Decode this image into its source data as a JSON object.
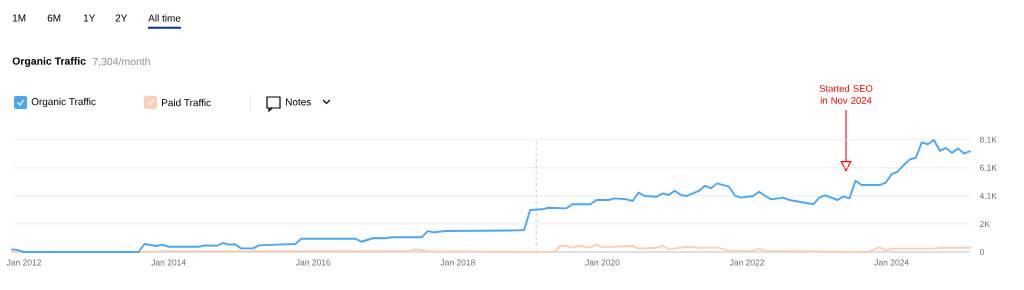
{
  "chart_data": {
    "type": "line",
    "title": "Organic Traffic",
    "subtitle": "7,304/month",
    "xlim": [
      "2011-11",
      "2025-02"
    ],
    "ylim": [
      0,
      8100
    ],
    "xticks": [
      {
        "value": "2012-01",
        "label": "Jan 2012"
      },
      {
        "value": "2014-01",
        "label": "Jan 2014"
      },
      {
        "value": "2016-01",
        "label": "Jan 2016"
      },
      {
        "value": "2018-01",
        "label": "Jan 2018"
      },
      {
        "value": "2020-01",
        "label": "Jan 2020"
      },
      {
        "value": "2022-01",
        "label": "Jan 2022"
      },
      {
        "value": "2024-01",
        "label": "Jan 2024"
      }
    ],
    "yticks": [
      0,
      {
        "value": 2025,
        "label": "2K"
      },
      {
        "value": 4050,
        "label": "4.1K"
      },
      {
        "value": 6075,
        "label": "6.1K"
      },
      {
        "value": 8100,
        "label": "8.1K"
      }
    ],
    "grid": "y",
    "legend": "top left",
    "marker": "none",
    "line_style": "solid",
    "ref_lines": [
      {
        "axis": "x",
        "value": "2019-02",
        "color": "#b0b0b0",
        "line_style": "dashed"
      }
    ],
    "annotations": [
      "1M",
      "6M",
      "1Y",
      "2Y",
      "All time",
      "Notes",
      "Started SEO in Nov 2024"
    ],
    "series": [
      {
        "name": "Paid Traffic",
        "color": "#f9cfb6",
        "x": [
          "2011-11",
          "2013-09",
          "2013-12",
          "2017-05",
          "2017-06",
          "2017-08",
          "2019-05",
          "2019-06",
          "2019-07",
          "2019-08",
          "2019-09",
          "2019-11",
          "2019-12",
          "2020-01",
          "2020-06",
          "2020-07",
          "2020-10",
          "2020-11",
          "2020-12",
          "2021-03",
          "2021-05",
          "2021-08",
          "2021-10",
          "2022-02",
          "2022-03",
          "2022-04",
          "2023-09",
          "2023-11",
          "2023-12",
          "2024-01",
          "2024-08",
          "2024-09",
          "2025-02"
        ],
        "values": [
          0,
          0,
          60,
          60,
          200,
          60,
          0,
          430,
          430,
          310,
          430,
          330,
          550,
          330,
          430,
          240,
          310,
          450,
          190,
          380,
          310,
          330,
          100,
          80,
          240,
          80,
          0,
          330,
          100,
          240,
          240,
          310,
          310
        ]
      },
      {
        "name": "Organic Traffic",
        "color": "#4aa8f0",
        "x": [
          "2011-11",
          "2011-12",
          "2012-01",
          "2013-08",
          "2013-09",
          "2013-11",
          "2013-12",
          "2014-01",
          "2014-06",
          "2014-07",
          "2014-09",
          "2014-10",
          "2014-11",
          "2014-12",
          "2015-01",
          "2015-03",
          "2015-04",
          "2015-07",
          "2015-10",
          "2015-11",
          "2016-08",
          "2016-09",
          "2016-11",
          "2017-01",
          "2017-02",
          "2017-07",
          "2017-08",
          "2017-09",
          "2017-11",
          "2018-11",
          "2018-12",
          "2019-01",
          "2019-03",
          "2019-04",
          "2019-07",
          "2019-08",
          "2019-11",
          "2019-12",
          "2020-02",
          "2020-03",
          "2020-05",
          "2020-06",
          "2020-07",
          "2020-08",
          "2020-10",
          "2020-11",
          "2020-12",
          "2021-01",
          "2021-02",
          "2021-03",
          "2021-05",
          "2021-06",
          "2021-07",
          "2021-08",
          "2021-10",
          "2021-11",
          "2021-12",
          "2022-02",
          "2022-03",
          "2022-04",
          "2022-05",
          "2022-07",
          "2022-08",
          "2022-12",
          "2023-01",
          "2023-02",
          "2023-04",
          "2023-05",
          "2023-06",
          "2023-07",
          "2023-08",
          "2023-11",
          "2023-12",
          "2024-01",
          "2024-02",
          "2024-03",
          "2024-04",
          "2024-05",
          "2024-06",
          "2024-07",
          "2024-08",
          "2024-09",
          "2024-10",
          "2024-11",
          "2024-12",
          "2025-01",
          "2025-02"
        ],
        "values": [
          190,
          140,
          0,
          0,
          580,
          430,
          530,
          380,
          380,
          480,
          450,
          650,
          530,
          560,
          260,
          260,
          480,
          530,
          580,
          960,
          960,
          740,
          1010,
          990,
          1060,
          1060,
          1510,
          1420,
          1510,
          1560,
          1590,
          3030,
          3080,
          3190,
          3150,
          3440,
          3440,
          3750,
          3750,
          3870,
          3800,
          3680,
          4280,
          4040,
          3990,
          4230,
          4110,
          4420,
          4110,
          4040,
          4400,
          4780,
          4590,
          4950,
          4710,
          4060,
          3920,
          4040,
          4350,
          4040,
          3800,
          3920,
          3750,
          3440,
          3940,
          4090,
          3750,
          4010,
          3870,
          5140,
          4830,
          4830,
          5000,
          5620,
          5790,
          6270,
          6680,
          6800,
          7910,
          7770,
          8080,
          7300,
          7510,
          7150,
          7460,
          7100,
          7270
        ]
      }
    ]
  }
}
